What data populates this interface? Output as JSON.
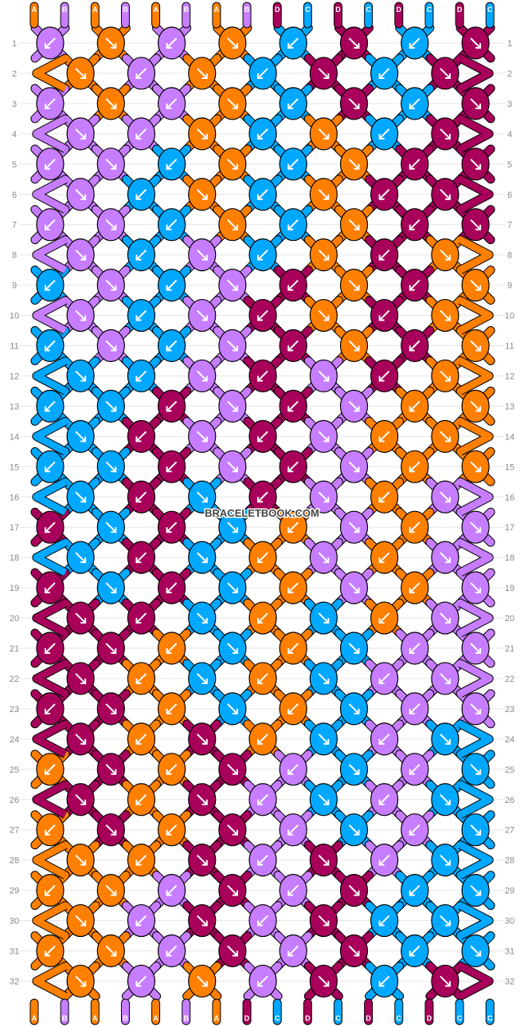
{
  "pattern": {
    "watermark": "BRACELETBOOK.COM",
    "colors": {
      "A": "#ff7f00",
      "B": "#c77dff",
      "C": "#00a8ff",
      "D": "#a8005a"
    },
    "top_letters": [
      "A",
      "B",
      "A",
      "B",
      "A",
      "B",
      "A",
      "B",
      "D",
      "C",
      "D",
      "C",
      "D",
      "C",
      "D",
      "C"
    ],
    "bottom_letters": [
      "A",
      "B",
      "A",
      "B",
      "A",
      "B",
      "A",
      "D",
      "C",
      "D",
      "C",
      "D",
      "C",
      "D",
      "C",
      "C"
    ],
    "rows": [
      {
        "n": "1",
        "knots": [
          {
            "c": "B",
            "d": "L"
          },
          {
            "c": "A",
            "d": "R"
          },
          {
            "c": "B",
            "d": "L"
          },
          {
            "c": "A",
            "d": "R"
          },
          {
            "c": "C",
            "d": "L"
          },
          {
            "c": "D",
            "d": "R"
          },
          {
            "c": "C",
            "d": "L"
          },
          {
            "c": "D",
            "d": "R"
          }
        ]
      },
      {
        "n": "2",
        "knots": [
          {
            "c": "A",
            "d": "R"
          },
          {
            "c": "B",
            "d": "L"
          },
          {
            "c": "A",
            "d": "R"
          },
          {
            "c": "C",
            "d": "L"
          },
          {
            "c": "D",
            "d": "R"
          },
          {
            "c": "C",
            "d": "L"
          },
          {
            "c": "D",
            "d": "R"
          }
        ]
      },
      {
        "n": "3",
        "knots": [
          {
            "c": "B",
            "d": "L"
          },
          {
            "c": "A",
            "d": "R"
          },
          {
            "c": "B",
            "d": "L"
          },
          {
            "c": "A",
            "d": "R"
          },
          {
            "c": "C",
            "d": "L"
          },
          {
            "c": "D",
            "d": "R"
          },
          {
            "c": "C",
            "d": "L"
          },
          {
            "c": "D",
            "d": "R"
          }
        ]
      },
      {
        "n": "4",
        "knots": [
          {
            "c": "B",
            "d": "R"
          },
          {
            "c": "B",
            "d": "L"
          },
          {
            "c": "A",
            "d": "R"
          },
          {
            "c": "C",
            "d": "L"
          },
          {
            "c": "A",
            "d": "R"
          },
          {
            "c": "C",
            "d": "L"
          },
          {
            "c": "D",
            "d": "R"
          }
        ]
      },
      {
        "n": "5",
        "knots": [
          {
            "c": "B",
            "d": "L"
          },
          {
            "c": "B",
            "d": "R"
          },
          {
            "c": "C",
            "d": "L"
          },
          {
            "c": "A",
            "d": "R"
          },
          {
            "c": "C",
            "d": "L"
          },
          {
            "c": "A",
            "d": "R"
          },
          {
            "c": "D",
            "d": "L"
          },
          {
            "c": "D",
            "d": "R"
          }
        ]
      },
      {
        "n": "6",
        "knots": [
          {
            "c": "B",
            "d": "R"
          },
          {
            "c": "C",
            "d": "L"
          },
          {
            "c": "A",
            "d": "R"
          },
          {
            "c": "C",
            "d": "L"
          },
          {
            "c": "A",
            "d": "R"
          },
          {
            "c": "D",
            "d": "L"
          },
          {
            "c": "D",
            "d": "R"
          }
        ]
      },
      {
        "n": "7",
        "knots": [
          {
            "c": "B",
            "d": "L"
          },
          {
            "c": "B",
            "d": "R"
          },
          {
            "c": "C",
            "d": "L"
          },
          {
            "c": "A",
            "d": "R"
          },
          {
            "c": "C",
            "d": "L"
          },
          {
            "c": "A",
            "d": "R"
          },
          {
            "c": "D",
            "d": "L"
          },
          {
            "c": "D",
            "d": "R"
          }
        ]
      },
      {
        "n": "8",
        "knots": [
          {
            "c": "B",
            "d": "R"
          },
          {
            "c": "C",
            "d": "L"
          },
          {
            "c": "B",
            "d": "R"
          },
          {
            "c": "C",
            "d": "L"
          },
          {
            "c": "A",
            "d": "R"
          },
          {
            "c": "D",
            "d": "L"
          },
          {
            "c": "A",
            "d": "R"
          }
        ]
      },
      {
        "n": "9",
        "knots": [
          {
            "c": "C",
            "d": "L"
          },
          {
            "c": "B",
            "d": "R"
          },
          {
            "c": "C",
            "d": "L"
          },
          {
            "c": "B",
            "d": "R"
          },
          {
            "c": "D",
            "d": "L"
          },
          {
            "c": "A",
            "d": "R"
          },
          {
            "c": "D",
            "d": "L"
          },
          {
            "c": "A",
            "d": "R"
          }
        ]
      },
      {
        "n": "10",
        "knots": [
          {
            "c": "B",
            "d": "R"
          },
          {
            "c": "C",
            "d": "L"
          },
          {
            "c": "B",
            "d": "R"
          },
          {
            "c": "D",
            "d": "L"
          },
          {
            "c": "A",
            "d": "R"
          },
          {
            "c": "D",
            "d": "L"
          },
          {
            "c": "A",
            "d": "R"
          }
        ]
      },
      {
        "n": "11",
        "knots": [
          {
            "c": "C",
            "d": "L"
          },
          {
            "c": "B",
            "d": "R"
          },
          {
            "c": "C",
            "d": "L"
          },
          {
            "c": "B",
            "d": "R"
          },
          {
            "c": "D",
            "d": "L"
          },
          {
            "c": "A",
            "d": "R"
          },
          {
            "c": "D",
            "d": "L"
          },
          {
            "c": "A",
            "d": "R"
          }
        ]
      },
      {
        "n": "12",
        "knots": [
          {
            "c": "C",
            "d": "R"
          },
          {
            "c": "C",
            "d": "L"
          },
          {
            "c": "B",
            "d": "R"
          },
          {
            "c": "D",
            "d": "L"
          },
          {
            "c": "B",
            "d": "R"
          },
          {
            "c": "D",
            "d": "L"
          },
          {
            "c": "A",
            "d": "R"
          }
        ]
      },
      {
        "n": "13",
        "knots": [
          {
            "c": "C",
            "d": "L"
          },
          {
            "c": "C",
            "d": "R"
          },
          {
            "c": "D",
            "d": "L"
          },
          {
            "c": "B",
            "d": "R"
          },
          {
            "c": "D",
            "d": "L"
          },
          {
            "c": "B",
            "d": "R"
          },
          {
            "c": "A",
            "d": "L"
          },
          {
            "c": "A",
            "d": "R"
          }
        ]
      },
      {
        "n": "14",
        "knots": [
          {
            "c": "C",
            "d": "R"
          },
          {
            "c": "D",
            "d": "L"
          },
          {
            "c": "B",
            "d": "R"
          },
          {
            "c": "D",
            "d": "L"
          },
          {
            "c": "B",
            "d": "R"
          },
          {
            "c": "A",
            "d": "L"
          },
          {
            "c": "A",
            "d": "R"
          }
        ]
      },
      {
        "n": "15",
        "knots": [
          {
            "c": "C",
            "d": "L"
          },
          {
            "c": "C",
            "d": "R"
          },
          {
            "c": "D",
            "d": "L"
          },
          {
            "c": "B",
            "d": "R"
          },
          {
            "c": "D",
            "d": "L"
          },
          {
            "c": "B",
            "d": "R"
          },
          {
            "c": "A",
            "d": "L"
          },
          {
            "c": "A",
            "d": "R"
          }
        ]
      },
      {
        "n": "16",
        "knots": [
          {
            "c": "C",
            "d": "R"
          },
          {
            "c": "D",
            "d": "L"
          },
          {
            "c": "C",
            "d": "R"
          },
          {
            "c": "D",
            "d": "L"
          },
          {
            "c": "B",
            "d": "R"
          },
          {
            "c": "A",
            "d": "L"
          },
          {
            "c": "B",
            "d": "R"
          }
        ]
      },
      {
        "n": "17",
        "knots": [
          {
            "c": "D",
            "d": "L"
          },
          {
            "c": "C",
            "d": "R"
          },
          {
            "c": "D",
            "d": "L"
          },
          {
            "c": "C",
            "d": "R"
          },
          {
            "c": "A",
            "d": "L"
          },
          {
            "c": "B",
            "d": "R"
          },
          {
            "c": "A",
            "d": "L"
          },
          {
            "c": "B",
            "d": "R"
          }
        ]
      },
      {
        "n": "18",
        "knots": [
          {
            "c": "C",
            "d": "R"
          },
          {
            "c": "D",
            "d": "L"
          },
          {
            "c": "C",
            "d": "R"
          },
          {
            "c": "A",
            "d": "L"
          },
          {
            "c": "B",
            "d": "R"
          },
          {
            "c": "A",
            "d": "L"
          },
          {
            "c": "B",
            "d": "R"
          }
        ]
      },
      {
        "n": "19",
        "knots": [
          {
            "c": "D",
            "d": "L"
          },
          {
            "c": "C",
            "d": "R"
          },
          {
            "c": "D",
            "d": "L"
          },
          {
            "c": "C",
            "d": "R"
          },
          {
            "c": "A",
            "d": "L"
          },
          {
            "c": "B",
            "d": "R"
          },
          {
            "c": "A",
            "d": "L"
          },
          {
            "c": "B",
            "d": "R"
          }
        ]
      },
      {
        "n": "20",
        "knots": [
          {
            "c": "D",
            "d": "R"
          },
          {
            "c": "D",
            "d": "L"
          },
          {
            "c": "C",
            "d": "R"
          },
          {
            "c": "A",
            "d": "L"
          },
          {
            "c": "C",
            "d": "R"
          },
          {
            "c": "A",
            "d": "L"
          },
          {
            "c": "B",
            "d": "R"
          }
        ]
      },
      {
        "n": "21",
        "knots": [
          {
            "c": "D",
            "d": "L"
          },
          {
            "c": "D",
            "d": "R"
          },
          {
            "c": "A",
            "d": "L"
          },
          {
            "c": "C",
            "d": "R"
          },
          {
            "c": "A",
            "d": "L"
          },
          {
            "c": "C",
            "d": "R"
          },
          {
            "c": "B",
            "d": "L"
          },
          {
            "c": "B",
            "d": "R"
          }
        ]
      },
      {
        "n": "22",
        "knots": [
          {
            "c": "D",
            "d": "R"
          },
          {
            "c": "A",
            "d": "L"
          },
          {
            "c": "C",
            "d": "R"
          },
          {
            "c": "A",
            "d": "L"
          },
          {
            "c": "C",
            "d": "R"
          },
          {
            "c": "B",
            "d": "L"
          },
          {
            "c": "B",
            "d": "R"
          }
        ]
      },
      {
        "n": "23",
        "knots": [
          {
            "c": "D",
            "d": "L"
          },
          {
            "c": "D",
            "d": "R"
          },
          {
            "c": "A",
            "d": "L"
          },
          {
            "c": "C",
            "d": "R"
          },
          {
            "c": "A",
            "d": "L"
          },
          {
            "c": "C",
            "d": "R"
          },
          {
            "c": "B",
            "d": "L"
          },
          {
            "c": "B",
            "d": "R"
          }
        ]
      },
      {
        "n": "24",
        "knots": [
          {
            "c": "D",
            "d": "R"
          },
          {
            "c": "A",
            "d": "L"
          },
          {
            "c": "D",
            "d": "R"
          },
          {
            "c": "A",
            "d": "L"
          },
          {
            "c": "C",
            "d": "R"
          },
          {
            "c": "B",
            "d": "L"
          },
          {
            "c": "C",
            "d": "R"
          }
        ]
      },
      {
        "n": "25",
        "knots": [
          {
            "c": "A",
            "d": "L"
          },
          {
            "c": "D",
            "d": "R"
          },
          {
            "c": "A",
            "d": "L"
          },
          {
            "c": "D",
            "d": "R"
          },
          {
            "c": "B",
            "d": "L"
          },
          {
            "c": "C",
            "d": "R"
          },
          {
            "c": "B",
            "d": "L"
          },
          {
            "c": "C",
            "d": "R"
          }
        ]
      },
      {
        "n": "26",
        "knots": [
          {
            "c": "D",
            "d": "R"
          },
          {
            "c": "A",
            "d": "L"
          },
          {
            "c": "D",
            "d": "R"
          },
          {
            "c": "B",
            "d": "L"
          },
          {
            "c": "C",
            "d": "R"
          },
          {
            "c": "B",
            "d": "L"
          },
          {
            "c": "C",
            "d": "R"
          }
        ]
      },
      {
        "n": "27",
        "knots": [
          {
            "c": "A",
            "d": "L"
          },
          {
            "c": "D",
            "d": "R"
          },
          {
            "c": "A",
            "d": "L"
          },
          {
            "c": "D",
            "d": "R"
          },
          {
            "c": "B",
            "d": "L"
          },
          {
            "c": "C",
            "d": "R"
          },
          {
            "c": "B",
            "d": "L"
          },
          {
            "c": "C",
            "d": "R"
          }
        ]
      },
      {
        "n": "28",
        "knots": [
          {
            "c": "A",
            "d": "R"
          },
          {
            "c": "A",
            "d": "L"
          },
          {
            "c": "D",
            "d": "R"
          },
          {
            "c": "B",
            "d": "L"
          },
          {
            "c": "D",
            "d": "R"
          },
          {
            "c": "B",
            "d": "L"
          },
          {
            "c": "C",
            "d": "R"
          }
        ]
      },
      {
        "n": "29",
        "knots": [
          {
            "c": "A",
            "d": "L"
          },
          {
            "c": "A",
            "d": "R"
          },
          {
            "c": "B",
            "d": "L"
          },
          {
            "c": "D",
            "d": "R"
          },
          {
            "c": "B",
            "d": "L"
          },
          {
            "c": "D",
            "d": "R"
          },
          {
            "c": "C",
            "d": "L"
          },
          {
            "c": "C",
            "d": "R"
          }
        ]
      },
      {
        "n": "30",
        "knots": [
          {
            "c": "A",
            "d": "R"
          },
          {
            "c": "B",
            "d": "L"
          },
          {
            "c": "D",
            "d": "R"
          },
          {
            "c": "B",
            "d": "L"
          },
          {
            "c": "D",
            "d": "R"
          },
          {
            "c": "C",
            "d": "L"
          },
          {
            "c": "C",
            "d": "R"
          }
        ]
      },
      {
        "n": "31",
        "knots": [
          {
            "c": "A",
            "d": "L"
          },
          {
            "c": "A",
            "d": "R"
          },
          {
            "c": "B",
            "d": "L"
          },
          {
            "c": "D",
            "d": "R"
          },
          {
            "c": "B",
            "d": "L"
          },
          {
            "c": "D",
            "d": "R"
          },
          {
            "c": "C",
            "d": "L"
          },
          {
            "c": "C",
            "d": "R"
          }
        ]
      },
      {
        "n": "32",
        "knots": [
          {
            "c": "A",
            "d": "R"
          },
          {
            "c": "B",
            "d": "L"
          },
          {
            "c": "A",
            "d": "R"
          },
          {
            "c": "B",
            "d": "L"
          },
          {
            "c": "D",
            "d": "R"
          },
          {
            "c": "C",
            "d": "L"
          },
          {
            "c": "D",
            "d": "R"
          }
        ]
      }
    ]
  }
}
